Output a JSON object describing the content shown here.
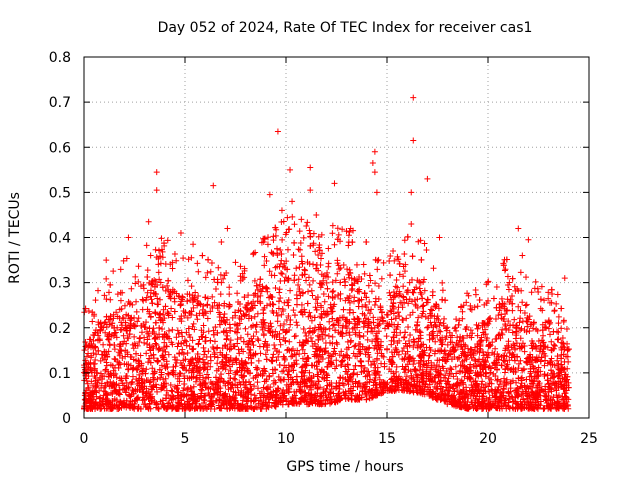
{
  "chart_data": {
    "type": "scatter",
    "title": "Day 052 of 2024, Rate Of TEC Index for receiver cas1",
    "xlabel": "GPS time / hours",
    "ylabel": "ROTI / TECUs",
    "xlim": [
      0,
      25
    ],
    "ylim": [
      0,
      0.8
    ],
    "x_ticks": [
      "0",
      "5",
      "10",
      "15",
      "20",
      "25"
    ],
    "y_ticks": [
      "0",
      "0.1",
      "0.2",
      "0.3",
      "0.4",
      "0.5",
      "0.6",
      "0.7",
      "0.8"
    ],
    "grid": true,
    "marker": "+",
    "color": "#ff0000",
    "envelope_hours": [
      0,
      1,
      2,
      3,
      4,
      5,
      6,
      7,
      8,
      9,
      10,
      11,
      12,
      13,
      14,
      15,
      16,
      17,
      18,
      19,
      20,
      21,
      22,
      23,
      24
    ],
    "envelope_typical_max": [
      0.16,
      0.22,
      0.26,
      0.3,
      0.32,
      0.28,
      0.27,
      0.26,
      0.25,
      0.32,
      0.36,
      0.35,
      0.34,
      0.34,
      0.3,
      0.27,
      0.32,
      0.3,
      0.2,
      0.19,
      0.22,
      0.28,
      0.23,
      0.2,
      0.18
    ],
    "envelope_typical_min": [
      0.02,
      0.02,
      0.02,
      0.02,
      0.02,
      0.02,
      0.02,
      0.02,
      0.02,
      0.02,
      0.03,
      0.03,
      0.03,
      0.04,
      0.04,
      0.06,
      0.06,
      0.05,
      0.03,
      0.02,
      0.02,
      0.02,
      0.02,
      0.02,
      0.02
    ],
    "outliers": [
      {
        "x": 16.3,
        "y": 0.71
      },
      {
        "x": 9.6,
        "y": 0.635
      },
      {
        "x": 16.3,
        "y": 0.615
      },
      {
        "x": 14.4,
        "y": 0.59
      },
      {
        "x": 14.3,
        "y": 0.565
      },
      {
        "x": 11.2,
        "y": 0.555
      },
      {
        "x": 10.2,
        "y": 0.55
      },
      {
        "x": 3.6,
        "y": 0.545
      },
      {
        "x": 14.4,
        "y": 0.545
      },
      {
        "x": 17.0,
        "y": 0.53
      },
      {
        "x": 12.4,
        "y": 0.52
      },
      {
        "x": 6.4,
        "y": 0.515
      },
      {
        "x": 3.6,
        "y": 0.505
      },
      {
        "x": 11.2,
        "y": 0.505
      },
      {
        "x": 14.5,
        "y": 0.5
      },
      {
        "x": 9.2,
        "y": 0.495
      },
      {
        "x": 16.2,
        "y": 0.5
      },
      {
        "x": 10.3,
        "y": 0.48
      },
      {
        "x": 9.8,
        "y": 0.46
      },
      {
        "x": 11.5,
        "y": 0.45
      },
      {
        "x": 3.2,
        "y": 0.435
      },
      {
        "x": 16.2,
        "y": 0.43
      },
      {
        "x": 21.5,
        "y": 0.42
      },
      {
        "x": 7.1,
        "y": 0.42
      },
      {
        "x": 13.2,
        "y": 0.42
      },
      {
        "x": 4.8,
        "y": 0.41
      },
      {
        "x": 17.6,
        "y": 0.4
      },
      {
        "x": 2.2,
        "y": 0.4
      },
      {
        "x": 22.0,
        "y": 0.395
      },
      {
        "x": 8.9,
        "y": 0.39
      },
      {
        "x": 6.8,
        "y": 0.39
      },
      {
        "x": 5.4,
        "y": 0.385
      },
      {
        "x": 15.3,
        "y": 0.37
      },
      {
        "x": 1.1,
        "y": 0.35
      },
      {
        "x": 3.3,
        "y": 0.36
      },
      {
        "x": 7.5,
        "y": 0.345
      },
      {
        "x": 23.8,
        "y": 0.31
      },
      {
        "x": 21.7,
        "y": 0.36
      },
      {
        "x": 18.8,
        "y": 0.25
      },
      {
        "x": 19.2,
        "y": 0.24
      }
    ]
  }
}
